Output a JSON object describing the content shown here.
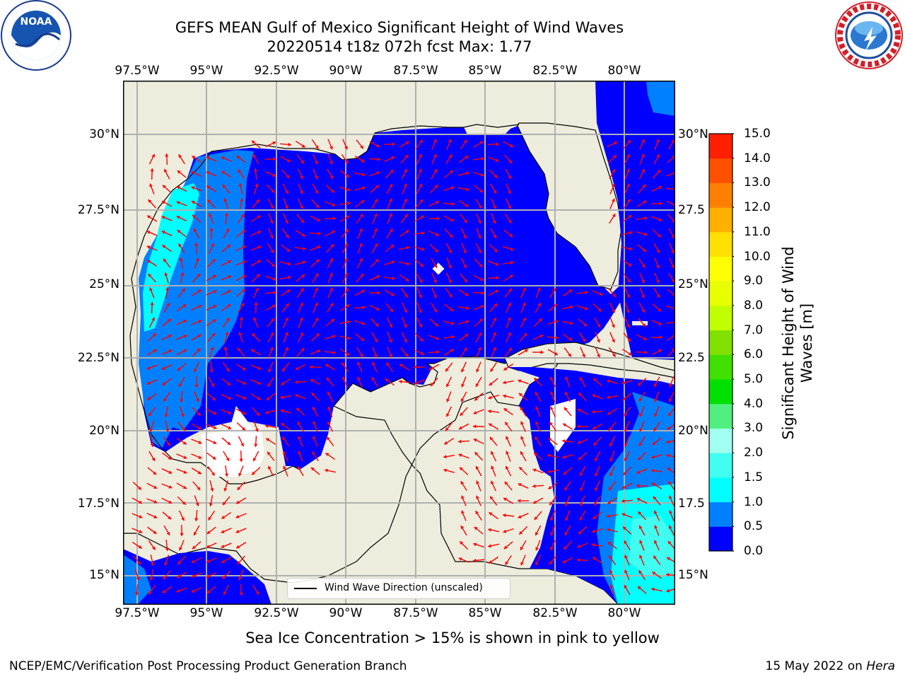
{
  "title": {
    "line1": "GEFS MEAN Gulf of Mexico Significant Height of Wind Waves",
    "line2": "20220514 t18z 072h fcst   Max: 1.77"
  },
  "map": {
    "lon_labels": [
      "97.5°W",
      "95°W",
      "92.5°W",
      "90°W",
      "87.5°W",
      "85°W",
      "82.5°W",
      "80°W"
    ],
    "lat_labels_left": [
      "30°N",
      "27.5°N",
      "25°N",
      "22.5°N",
      "20°N",
      "17.5°N",
      "15°N"
    ],
    "lat_labels_right": [
      "30°N",
      "27.5",
      "25°N",
      "22.5",
      "20°N",
      "17.5",
      "15°N"
    ],
    "legend_label": "Wind Wave Direction (unscaled)",
    "colors": {
      "land": "#eeecdc",
      "water_0_0p5": "#0000ff",
      "water_0p5_1": "#0080ff",
      "water_1_1p5": "#00ffff",
      "water_1p5_2": "#40fff0",
      "arrow": "#ff0000",
      "grid": "#b0b0b0"
    }
  },
  "colorbar": {
    "title": "Significant Height of Wind Waves [m]",
    "ticks": [
      "15.0",
      "14.0",
      "13.0",
      "12.0",
      "11.0",
      "10.0",
      "9.0",
      "8.0",
      "7.0",
      "6.0",
      "5.0",
      "4.0",
      "3.0",
      "2.0",
      "1.5",
      "1.0",
      "0.5",
      "0.0"
    ],
    "bands": [
      "#0000ff",
      "#0080ff",
      "#00ffff",
      "#40fff0",
      "#a0fff0",
      "#50f080",
      "#00e000",
      "#40e000",
      "#80e000",
      "#c0ff00",
      "#e8ff00",
      "#ffff00",
      "#ffe000",
      "#ffb000",
      "#ff8000",
      "#ff5000",
      "#ff2000"
    ]
  },
  "sea_ice_note": "Sea Ice Concentration > 15% is shown in pink to yellow",
  "footer": {
    "left": "NCEP/EMC/Verification Post Processing Product Generation Branch",
    "right_date": "15 May 2022 on ",
    "right_host": "Hera"
  }
}
